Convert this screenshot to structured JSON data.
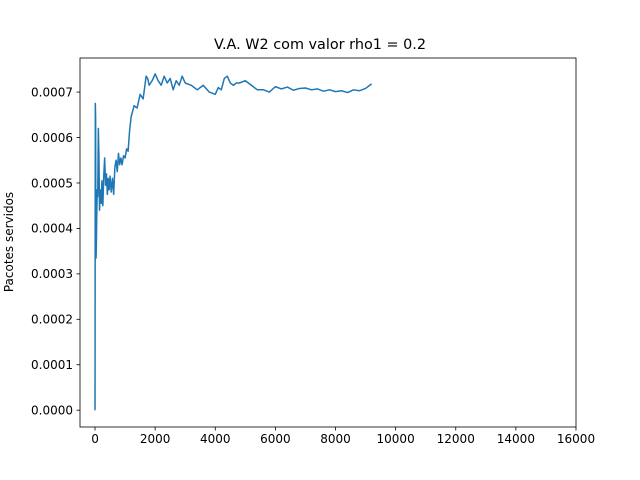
{
  "chart_data": {
    "type": "line",
    "title": "V.A. W2 com valor rho1 = 0.2",
    "xlabel": "",
    "ylabel": "Pacotes servidos",
    "xlim": [
      -500,
      16000
    ],
    "ylim": [
      -3.7e-05,
      0.000775
    ],
    "x_ticks": [
      0,
      2000,
      4000,
      6000,
      8000,
      10000,
      12000,
      14000,
      16000
    ],
    "x_tick_labels": [
      "0",
      "2000",
      "4000",
      "6000",
      "8000",
      "10000",
      "12000",
      "14000",
      "16000"
    ],
    "y_ticks": [
      0.0,
      0.0001,
      0.0002,
      0.0003,
      0.0004,
      0.0005,
      0.0006,
      0.0007
    ],
    "y_tick_labels": [
      "0.0000",
      "0.0001",
      "0.0002",
      "0.0003",
      "0.0004",
      "0.0005",
      "0.0006",
      "0.0007"
    ],
    "grid": false,
    "legend": "none",
    "series": [
      {
        "color": "#1f77b4",
        "x": [
          0,
          3,
          10,
          20,
          25,
          35,
          45,
          60,
          75,
          90,
          110,
          130,
          150,
          170,
          190,
          210,
          230,
          260,
          290,
          320,
          350,
          380,
          410,
          440,
          470,
          500,
          540,
          580,
          620,
          660,
          700,
          740,
          780,
          820,
          860,
          900,
          950,
          1000,
          1050,
          1100,
          1150,
          1200,
          1300,
          1400,
          1500,
          1600,
          1700,
          1750,
          1800,
          1900,
          2000,
          2100,
          2200,
          2300,
          2400,
          2500,
          2600,
          2700,
          2800,
          2900,
          3000,
          3200,
          3400,
          3600,
          3800,
          4000,
          4100,
          4200,
          4300,
          4400,
          4500,
          4600,
          4700,
          4800,
          5000,
          5200,
          5400,
          5600,
          5800,
          6000,
          6200,
          6400,
          6600,
          6800,
          7000,
          7200,
          7400,
          7600,
          7800,
          8000,
          8200,
          8400,
          8600,
          8800,
          9000,
          9200
        ],
        "y": [
          0.0,
          0.000265,
          0.000675,
          0.00064,
          0.00046,
          0.000335,
          0.00037,
          0.00044,
          0.000485,
          0.00047,
          0.00062,
          0.00056,
          0.00044,
          0.000485,
          0.000465,
          0.000455,
          0.000505,
          0.00045,
          0.000515,
          0.000555,
          0.000495,
          0.00052,
          0.000475,
          0.00051,
          0.000485,
          0.000515,
          0.00048,
          0.00051,
          0.000475,
          0.000535,
          0.00055,
          0.000525,
          0.000565,
          0.00054,
          0.000555,
          0.00054,
          0.00056,
          0.000555,
          0.000575,
          0.00057,
          0.000615,
          0.000645,
          0.00067,
          0.000665,
          0.000695,
          0.000685,
          0.000735,
          0.00073,
          0.000715,
          0.000725,
          0.00074,
          0.000725,
          0.000715,
          0.000735,
          0.00072,
          0.00073,
          0.000705,
          0.000725,
          0.000715,
          0.000735,
          0.00072,
          0.000715,
          0.000705,
          0.000715,
          0.0007,
          0.000695,
          0.00071,
          0.000705,
          0.00073,
          0.000735,
          0.00072,
          0.000715,
          0.00072,
          0.00072,
          0.000725,
          0.000715,
          0.000705,
          0.000705,
          0.0007,
          0.000712,
          0.000707,
          0.000711,
          0.000704,
          0.000708,
          0.000709,
          0.000705,
          0.000707,
          0.000702,
          0.000705,
          0.000701,
          0.000703,
          0.000699,
          0.000705,
          0.000703,
          0.000708,
          0.000718
        ]
      }
    ]
  }
}
